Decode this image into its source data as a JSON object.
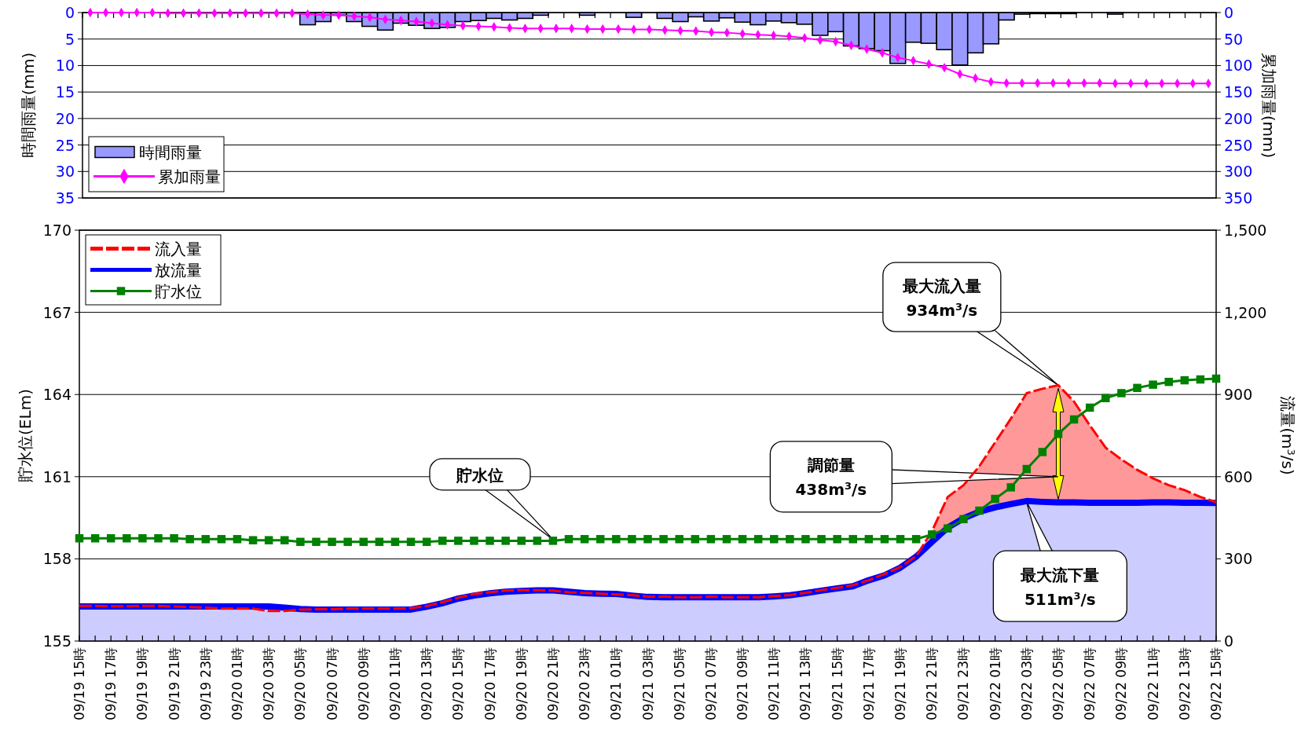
{
  "chart_data": [
    {
      "type": "bar",
      "ylabel": "時間雨量(mm)",
      "y2label": "累加雨量(mm)",
      "categories": [
        null,
        null,
        null,
        null,
        null,
        null,
        null,
        null,
        null,
        null,
        null,
        null,
        null,
        null,
        null,
        null,
        null,
        null,
        null,
        null,
        null,
        null,
        null,
        null,
        null,
        null,
        null,
        null,
        null,
        null,
        null,
        null,
        null,
        null,
        null,
        null,
        null,
        null,
        null,
        null,
        null,
        null,
        null,
        null,
        null,
        null,
        null,
        null,
        null,
        null,
        null,
        null,
        null,
        null,
        null,
        null,
        null,
        null,
        null,
        null,
        null,
        null,
        null,
        null,
        null,
        null,
        null,
        null,
        null,
        null,
        null,
        null,
        null
      ],
      "ylim": [
        35,
        0
      ],
      "yticks": [
        0,
        5,
        10,
        15,
        20,
        25,
        30,
        35
      ],
      "y2lim": [
        350,
        0
      ],
      "y2ticks": [
        0,
        50,
        100,
        150,
        200,
        250,
        300,
        350
      ],
      "grid": "y",
      "legend": "bottom left",
      "tick_labels": "y",
      "series": [
        {
          "name": "時間雨量",
          "type": "bar",
          "color": "#9999ff",
          "values": [
            0,
            0,
            0,
            0,
            0,
            null,
            0,
            0,
            0,
            0,
            0,
            0,
            0,
            0,
            2.3,
            1.7,
            0.5,
            1.7,
            2.6,
            3.3,
            2.0,
            2.4,
            3.0,
            2.8,
            1.7,
            1.5,
            1.1,
            1.4,
            1.1,
            0.5,
            0,
            0,
            0.5,
            0,
            0,
            0.9,
            0,
            1.1,
            1.7,
            0.8,
            1.6,
            1.0,
            1.8,
            2.3,
            1.6,
            1.9,
            2.2,
            4.3,
            3.6,
            6.3,
            6.8,
            7.2,
            9.6,
            5.6,
            5.8,
            7.0,
            9.9,
            7.6,
            5.9,
            1.4,
            0.3,
            0.2,
            0.2,
            0.2,
            0,
            0,
            0.3,
            0,
            0,
            0,
            0,
            0,
            0
          ]
        },
        {
          "name": "累加雨量",
          "type": "line",
          "axis": "y2",
          "color": "#ff00ff",
          "marker": "diamond",
          "values": [
            0,
            0,
            0,
            0,
            0,
            1,
            1,
            1,
            1,
            1,
            1,
            1,
            1,
            1,
            3,
            5,
            5,
            7,
            9,
            13,
            15,
            17,
            20,
            23,
            25,
            26,
            27,
            29,
            30,
            30,
            30,
            30,
            31,
            31,
            31,
            32,
            32,
            33,
            34,
            35,
            37,
            38,
            40,
            42,
            43,
            45,
            48,
            52,
            55,
            62,
            69,
            76,
            85,
            91,
            97,
            104,
            116,
            124,
            131,
            133,
            133,
            133,
            133,
            133,
            133,
            133,
            134,
            134,
            134,
            134,
            134,
            134,
            134
          ]
        }
      ]
    },
    {
      "type": "line",
      "ylabel": "貯水位(ELm)",
      "y2label": "流量(m$^{3}$/s)",
      "categories": [
        "09/19 15時",
        null,
        "09/19 17時",
        null,
        "09/19 19時",
        null,
        "09/19 21時",
        null,
        "09/19 23時",
        null,
        "09/20 01時",
        null,
        "09/20 03時",
        null,
        "09/20 05時",
        null,
        "09/20 07時",
        null,
        "09/20 09時",
        null,
        "09/20 11時",
        null,
        "09/20 13時",
        null,
        "09/20 15時",
        null,
        "09/20 17時",
        null,
        "09/20 19時",
        null,
        "09/20 21時",
        null,
        "09/20 23時",
        null,
        "09/21 01時",
        null,
        "09/21 03時",
        null,
        "09/21 05時",
        null,
        "09/21 07時",
        null,
        "09/21 09時",
        null,
        "09/21 11時",
        null,
        "09/21 13時",
        null,
        "09/21 15時",
        null,
        "09/21 17時",
        null,
        "09/21 19時",
        null,
        "09/21 21時",
        null,
        "09/21 23時",
        null,
        "09/22 01時",
        null,
        "09/22 03時",
        null,
        "09/22 05時",
        null,
        "09/22 07時",
        null,
        "09/22 09時",
        null,
        "09/22 11時",
        null,
        "09/22 13時",
        null,
        "09/22 15時"
      ],
      "ylim": [
        155,
        170
      ],
      "yticks": [
        155,
        158,
        161,
        164,
        167,
        170
      ],
      "y2lim": [
        0,
        1500
      ],
      "y2ticks": [
        0,
        300,
        600,
        900,
        {
          "value": 1200,
          "label": "1,200"
        },
        {
          "value": 1500,
          "label": "1,500"
        }
      ],
      "grid": "y",
      "legend": "top left",
      "series": [
        {
          "name": "流入量",
          "type": "area",
          "axis": "y2",
          "color": "#ff0000",
          "line_style": "dashed",
          "values": [
            128,
            128,
            127,
            127,
            128,
            128,
            126,
            124,
            122,
            118,
            118,
            118,
            110,
            110,
            115,
            116,
            116,
            118,
            118,
            118,
            118,
            120,
            128,
            142,
            158,
            172,
            178,
            184,
            186,
            186,
            184,
            178,
            176,
            173,
            170,
            168,
            162,
            162,
            160,
            160,
            162,
            160,
            160,
            160,
            164,
            168,
            176,
            186,
            194,
            204,
            222,
            245,
            270,
            310,
            401,
            526,
            569,
            638,
            725,
            812,
            905,
            921,
            934,
            874,
            787,
            706,
            663,
            625,
            594,
            569,
            551,
            526,
            507
          ]
        },
        {
          "name": "放流量",
          "type": "area",
          "axis": "y2",
          "color": "#0000ff",
          "values": [
            126,
            126,
            126,
            126,
            126,
            126,
            126,
            126,
            126,
            126,
            126,
            126,
            126,
            122,
            117,
            115,
            115,
            115,
            115,
            115,
            115,
            115,
            125,
            138,
            155,
            166,
            174,
            180,
            183,
            185,
            185,
            180,
            175,
            173,
            172,
            166,
            161,
            160,
            160,
            160,
            160,
            160,
            160,
            160,
            163,
            167,
            175,
            184,
            192,
            200,
            222,
            240,
            268,
            308,
            362,
            414,
            448,
            472,
            488,
            500,
            511,
            508,
            506,
            506,
            505,
            505,
            505,
            505,
            506,
            506,
            505,
            505,
            504
          ]
        },
        {
          "name": "貯水位",
          "type": "line",
          "color": "#008000",
          "marker": "square",
          "values": [
            158.75,
            158.75,
            158.75,
            158.75,
            158.75,
            158.75,
            158.75,
            158.72,
            158.72,
            158.72,
            158.72,
            158.68,
            158.68,
            158.68,
            158.62,
            158.62,
            158.62,
            158.62,
            158.62,
            158.62,
            158.62,
            158.62,
            158.62,
            158.66,
            158.66,
            158.66,
            158.66,
            158.66,
            158.66,
            158.66,
            158.66,
            158.72,
            158.72,
            158.72,
            158.72,
            158.72,
            158.72,
            158.72,
            158.72,
            158.72,
            158.72,
            158.72,
            158.72,
            158.72,
            158.72,
            158.72,
            158.72,
            158.72,
            158.72,
            158.72,
            158.72,
            158.72,
            158.72,
            158.72,
            158.89,
            159.11,
            159.45,
            159.76,
            160.19,
            160.61,
            161.28,
            161.9,
            162.56,
            163.09,
            163.52,
            163.87,
            164.05,
            164.24,
            164.36,
            164.46,
            164.52,
            164.55,
            164.58
          ]
        }
      ],
      "annotations": [
        "最大流入量\n934m$^{3}$/s",
        "調節量\n438m$^{3}$/s",
        "最大流下量\n511m$^{3}$/s",
        "貯水位"
      ]
    }
  ]
}
